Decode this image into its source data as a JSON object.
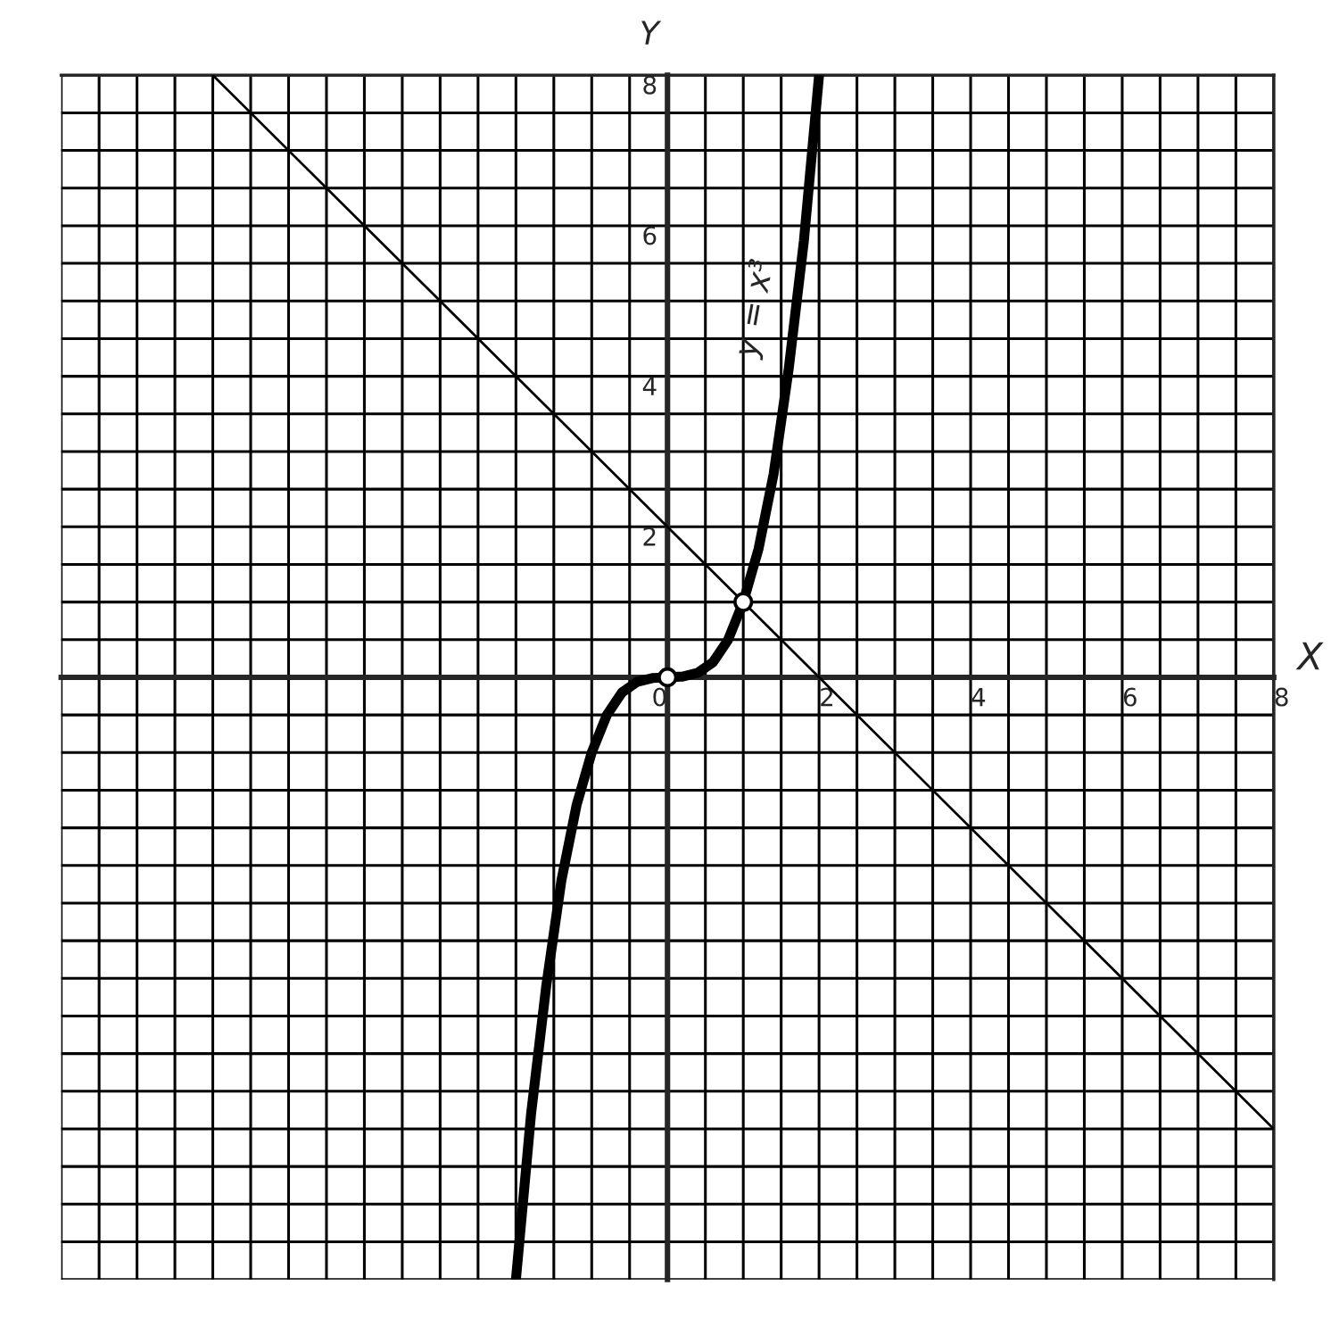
{
  "chart_data": {
    "type": "line",
    "xlabel": "X",
    "ylabel": "Y",
    "xlim": [
      -8,
      8
    ],
    "ylim": [
      -8,
      8
    ],
    "xticks": [
      {
        "value": -8,
        "label": null
      },
      {
        "value": -7.5,
        "label": null
      },
      {
        "value": -7,
        "label": null
      },
      {
        "value": -6.5,
        "label": null
      },
      {
        "value": -6,
        "label": null
      },
      {
        "value": -5.5,
        "label": null
      },
      {
        "value": -5,
        "label": null
      },
      {
        "value": -4.5,
        "label": null
      },
      {
        "value": -4,
        "label": null
      },
      {
        "value": -3.5,
        "label": null
      },
      {
        "value": -3,
        "label": null
      },
      {
        "value": -2.5,
        "label": null
      },
      {
        "value": -2,
        "label": null
      },
      {
        "value": -1.5,
        "label": null
      },
      {
        "value": -1,
        "label": null
      },
      {
        "value": -0.5,
        "label": null
      },
      0,
      {
        "value": 0.5,
        "label": null
      },
      {
        "value": 1,
        "label": null
      },
      {
        "value": 1.5,
        "label": null
      },
      2,
      {
        "value": 2.5,
        "label": null
      },
      {
        "value": 3,
        "label": null
      },
      {
        "value": 3.5,
        "label": null
      },
      4,
      {
        "value": 4.5,
        "label": null
      },
      {
        "value": 5,
        "label": null
      },
      {
        "value": 5.5,
        "label": null
      },
      6,
      {
        "value": 6.5,
        "label": null
      },
      {
        "value": 7,
        "label": null
      },
      {
        "value": 7.5,
        "label": null
      },
      8
    ],
    "yticks": [
      {
        "value": -8,
        "label": null
      },
      {
        "value": -7.5,
        "label": null
      },
      {
        "value": -7,
        "label": null
      },
      {
        "value": -6.5,
        "label": null
      },
      {
        "value": -6,
        "label": null
      },
      {
        "value": -5.5,
        "label": null
      },
      {
        "value": -5,
        "label": null
      },
      {
        "value": -4.5,
        "label": null
      },
      {
        "value": -4,
        "label": null
      },
      {
        "value": -3.5,
        "label": null
      },
      {
        "value": -3,
        "label": null
      },
      {
        "value": -2.5,
        "label": null
      },
      {
        "value": -2,
        "label": null
      },
      {
        "value": -1.5,
        "label": null
      },
      {
        "value": -1,
        "label": null
      },
      {
        "value": -0.5,
        "label": null
      },
      {
        "value": 0,
        "label": null
      },
      {
        "value": 0.5,
        "label": null
      },
      {
        "value": 1,
        "label": null
      },
      {
        "value": 1.5,
        "label": null
      },
      2,
      {
        "value": 2.5,
        "label": null
      },
      {
        "value": 3,
        "label": null
      },
      {
        "value": 3.5,
        "label": null
      },
      4,
      {
        "value": 4.5,
        "label": null
      },
      {
        "value": 5,
        "label": null
      },
      {
        "value": 5.5,
        "label": null
      },
      6,
      {
        "value": 6.5,
        "label": null
      },
      {
        "value": 7,
        "label": null
      },
      {
        "value": 7.5,
        "label": null
      },
      8
    ],
    "grid": true,
    "series": [
      {
        "name": "y = x³",
        "color": "#000000",
        "x": [
          -2,
          -1.8,
          -1.6,
          -1.4,
          -1.2,
          -1,
          -0.8,
          -0.6,
          -0.4,
          -0.2,
          0,
          0.2,
          0.4,
          0.6,
          0.8,
          1,
          1.2,
          1.4,
          1.6,
          1.8,
          2
        ],
        "values": [
          -8,
          -5.8,
          -4.1,
          -2.7,
          -1.7,
          -1,
          -0.5,
          -0.2,
          -0.06,
          -0.01,
          0,
          0.01,
          0.06,
          0.2,
          0.5,
          1,
          1.7,
          2.7,
          4.1,
          5.8,
          8
        ]
      },
      {
        "color": "#000000",
        "x": [
          -6,
          8
        ],
        "values": [
          8,
          -6
        ]
      },
      {
        "type": "scatter",
        "marker": "circle",
        "color": "#ffffff",
        "x": [
          0,
          1
        ],
        "values": [
          0,
          1
        ]
      }
    ]
  }
}
